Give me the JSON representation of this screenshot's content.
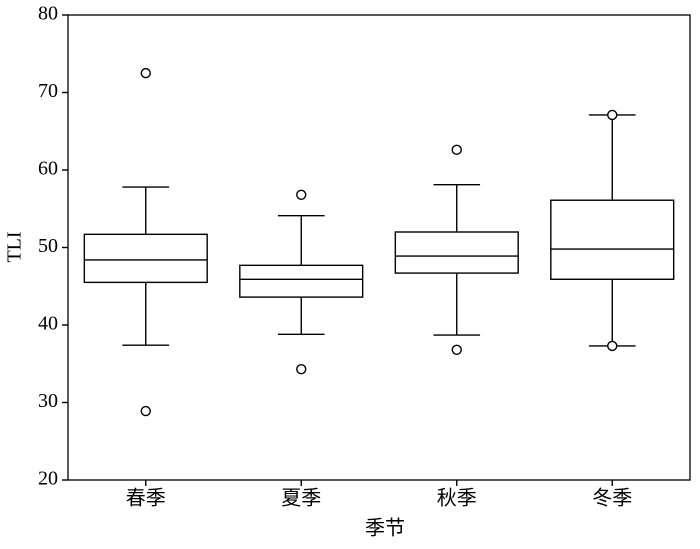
{
  "chart_data": {
    "type": "box",
    "x_label": "季节",
    "y_label": "TLI",
    "categories": [
      "春季",
      "夏季",
      "秋季",
      "冬季"
    ],
    "boxes": [
      {
        "whislo": 37.4,
        "q1": 45.5,
        "med": 48.4,
        "q3": 51.7,
        "whishi": 57.8,
        "fliers": [
          72.5,
          28.9
        ]
      },
      {
        "whislo": 38.8,
        "q1": 43.6,
        "med": 45.9,
        "q3": 47.7,
        "whishi": 54.1,
        "fliers": [
          56.8,
          34.3
        ]
      },
      {
        "whislo": 38.7,
        "q1": 46.7,
        "med": 48.9,
        "q3": 52.0,
        "whishi": 58.1,
        "fliers": [
          62.6,
          36.8
        ]
      },
      {
        "whislo": 37.3,
        "q1": 45.9,
        "med": 49.8,
        "q3": 56.1,
        "whishi": 67.1,
        "fliers": [
          67.1,
          37.3
        ]
      }
    ],
    "color": "#000000",
    "ylim": [
      20,
      80
    ],
    "yticks": [
      20,
      30,
      40,
      50,
      60,
      70,
      80
    ]
  }
}
